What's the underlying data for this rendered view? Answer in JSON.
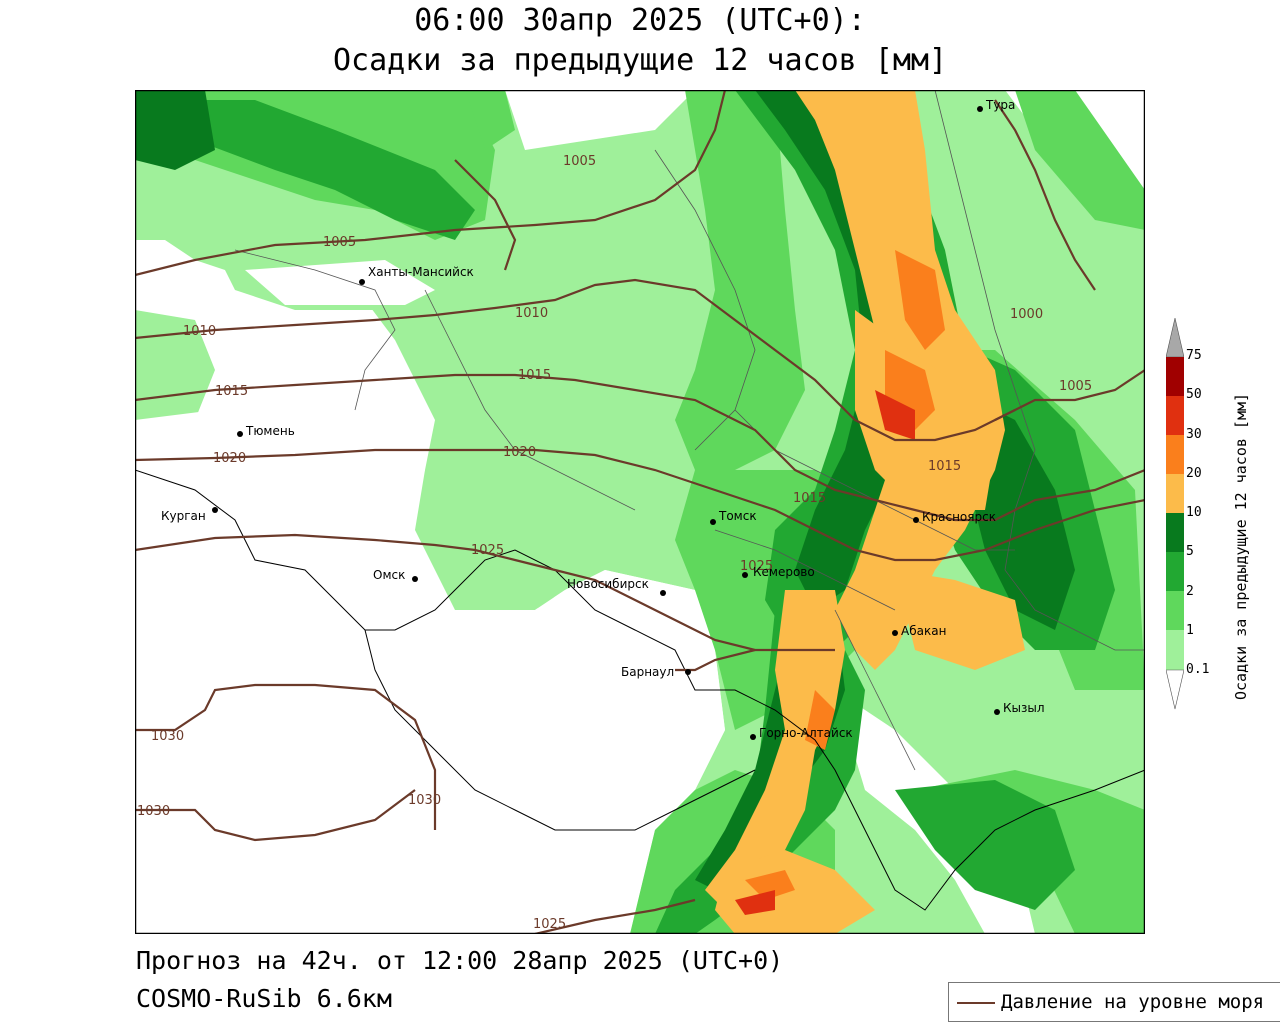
{
  "title": {
    "line1": "06:00 30апр 2025 (UTC+0):",
    "line2": "Осадки за предыдущие 12 часов [мм]"
  },
  "footer": {
    "forecast": "Прогноз на 42ч. от 12:00 28апр 2025 (UTC+0)",
    "model": "COSMO-RuSib 6.6км"
  },
  "legend": {
    "pressure_label": "Давление на уровне моря",
    "pressure_color": "#6b3a2a"
  },
  "colorbar": {
    "title": "Осадки за предыдущие 12 часов [мм]",
    "levels": [
      "0.1",
      "1",
      "2",
      "5",
      "10",
      "20",
      "30",
      "50",
      "75"
    ],
    "colors": [
      "#ffffff",
      "#9ff09a",
      "#5fd85c",
      "#22a832",
      "#087a1e",
      "#fcbb4a",
      "#fa7f1c",
      "#e03010",
      "#a00000",
      "#a8a8a8"
    ]
  },
  "cities": [
    {
      "name": "Тура"
    },
    {
      "name": "Ханты-Мансийск"
    },
    {
      "name": "Тюмень"
    },
    {
      "name": "Курган"
    },
    {
      "name": "Омск"
    },
    {
      "name": "Новосибирск"
    },
    {
      "name": "Томск"
    },
    {
      "name": "Кемерово"
    },
    {
      "name": "Красноярск"
    },
    {
      "name": "Абакан"
    },
    {
      "name": "Барнаул"
    },
    {
      "name": "Горно-Алтайск"
    },
    {
      "name": "Кызыл"
    }
  ],
  "isobars": [
    "1005",
    "1005",
    "1010",
    "1010",
    "1015",
    "1015",
    "1020",
    "1020",
    "1025",
    "1025",
    "1030",
    "1030",
    "1030",
    "1000",
    "1005",
    "1015",
    "1015",
    "1025"
  ]
}
